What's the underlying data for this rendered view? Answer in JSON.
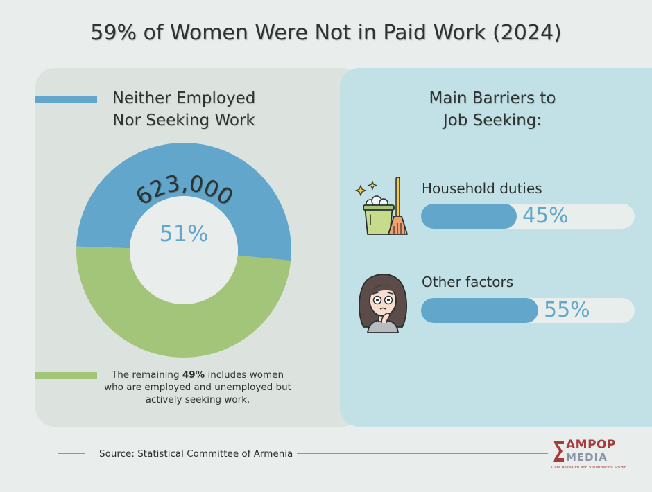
{
  "title": "59% of Women Were Not in Paid Work (2024)",
  "left": {
    "heading_line1": "Neither Employed",
    "heading_line2": "Nor Seeking Work",
    "count_label": "623,000",
    "center_label": "51%",
    "note_prefix": "The remaining ",
    "note_bold": "49%",
    "note_suffix": " includes women who are employed and unemployed but actively seeking work."
  },
  "right": {
    "heading_line1": "Main Barriers to",
    "heading_line2": "Job Seeking:",
    "items": [
      {
        "label": "Household duties",
        "value_label": "45%",
        "icon": "cleaning-bucket-broom-icon"
      },
      {
        "label": "Other factors",
        "value_label": "55%",
        "icon": "worried-woman-icon"
      }
    ]
  },
  "source": "Source: Statistical Committee of Armenia",
  "logo": {
    "word1": "AMPOP",
    "word2": "MEDIA",
    "tagline": "Data Research and Visualization Studio"
  },
  "colors": {
    "blue": "#62a7cb",
    "green": "#a3c57a",
    "accent_red": "#a83a3a"
  },
  "chart_data": [
    {
      "type": "pie",
      "title": "Neither Employed Nor Seeking Work",
      "categories": [
        "Neither employed nor seeking work",
        "Employed and unemployed but actively seeking work"
      ],
      "values": [
        51,
        49
      ],
      "annotations": [
        "623,000",
        "51%"
      ]
    },
    {
      "type": "bar",
      "title": "Main Barriers to Job Seeking:",
      "categories": [
        "Household duties",
        "Other factors"
      ],
      "values": [
        45,
        55
      ],
      "ylim": [
        0,
        100
      ]
    }
  ]
}
